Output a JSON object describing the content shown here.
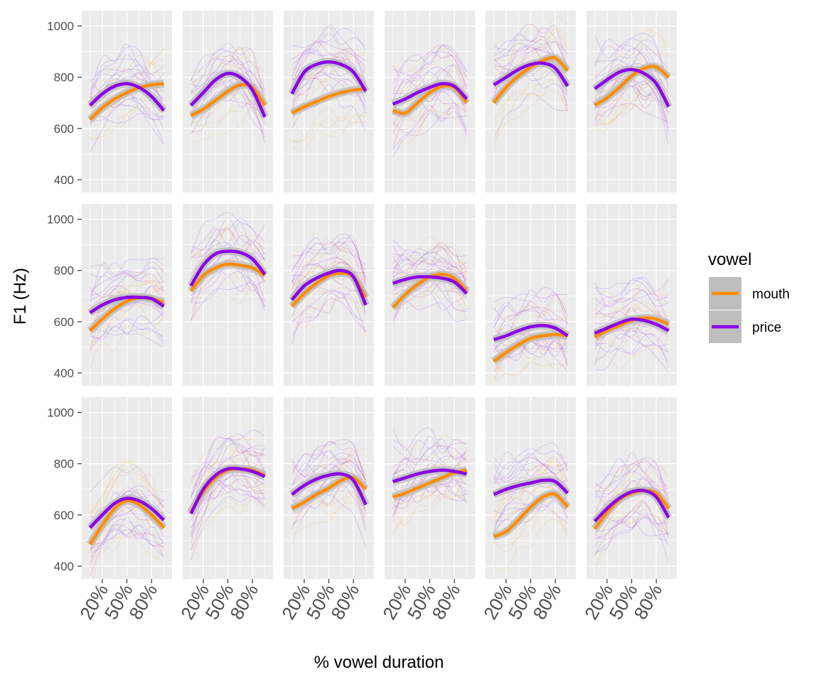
{
  "chart_data": {
    "type": "line",
    "xlabel": "% vowel duration",
    "ylabel": "F1 (Hz)",
    "x_tick_labels": [
      "20%",
      "50%",
      "80%"
    ],
    "x_ticks": [
      20,
      50,
      80
    ],
    "xlim": [
      -5,
      105
    ],
    "y_ticks": [
      400,
      600,
      800,
      1000
    ],
    "y_tick_labels": [
      "400",
      "600",
      "800",
      "1000"
    ],
    "ylim": [
      350,
      1060
    ],
    "grid": true,
    "legend": {
      "title": "vowel",
      "position": "right",
      "entries": [
        {
          "label": "mouth",
          "color": "#ff8c00"
        },
        {
          "label": "price",
          "color": "#8b00e8"
        }
      ]
    },
    "colors": {
      "mouth": "#ff8c00",
      "price": "#8b00e8",
      "panel_bg": "#ebebeb",
      "ribbon": "#bebebe"
    },
    "x": [
      5,
      20,
      35,
      50,
      65,
      80,
      95
    ],
    "facet_layout": {
      "rows": 3,
      "cols": 6
    },
    "panels": [
      {
        "mouth": [
          635,
          680,
          715,
          740,
          760,
          770,
          775
        ],
        "price": [
          690,
          735,
          765,
          775,
          760,
          725,
          670
        ]
      },
      {
        "mouth": [
          650,
          675,
          710,
          745,
          770,
          760,
          690
        ],
        "price": [
          690,
          740,
          790,
          815,
          800,
          750,
          645
        ]
      },
      {
        "mouth": [
          660,
          685,
          705,
          725,
          740,
          750,
          755
        ],
        "price": [
          735,
          820,
          850,
          860,
          850,
          820,
          745
        ]
      },
      {
        "mouth": [
          670,
          660,
          700,
          740,
          765,
          760,
          700
        ],
        "price": [
          695,
          715,
          740,
          760,
          775,
          765,
          715
        ]
      },
      {
        "mouth": [
          700,
          760,
          805,
          840,
          865,
          875,
          825
        ],
        "price": [
          770,
          800,
          830,
          850,
          855,
          835,
          765
        ]
      },
      {
        "mouth": [
          690,
          720,
          760,
          805,
          835,
          840,
          800
        ],
        "price": [
          755,
          790,
          820,
          830,
          815,
          775,
          685
        ]
      },
      {
        "mouth": [
          565,
          610,
          650,
          680,
          695,
          690,
          675
        ],
        "price": [
          635,
          665,
          685,
          695,
          695,
          690,
          660
        ]
      },
      {
        "mouth": [
          720,
          780,
          810,
          825,
          820,
          810,
          780
        ],
        "price": [
          740,
          820,
          865,
          875,
          870,
          845,
          785
        ]
      },
      {
        "mouth": [
          660,
          710,
          750,
          780,
          790,
          775,
          695
        ],
        "price": [
          685,
          740,
          770,
          790,
          800,
          775,
          665
        ]
      },
      {
        "mouth": [
          655,
          705,
          745,
          775,
          785,
          770,
          720
        ],
        "price": [
          750,
          765,
          775,
          775,
          770,
          755,
          710
        ]
      },
      {
        "mouth": [
          445,
          480,
          510,
          535,
          545,
          550,
          545
        ],
        "price": [
          530,
          545,
          565,
          580,
          585,
          575,
          545
        ]
      },
      {
        "mouth": [
          540,
          565,
          585,
          605,
          615,
          610,
          590
        ],
        "price": [
          555,
          575,
          595,
          610,
          605,
          590,
          565
        ]
      },
      {
        "mouth": [
          485,
          560,
          625,
          655,
          640,
          600,
          550
        ],
        "price": [
          550,
          600,
          645,
          665,
          655,
          625,
          580
        ]
      },
      {
        "mouth": [
          610,
          690,
          745,
          775,
          780,
          775,
          755
        ],
        "price": [
          605,
          700,
          755,
          780,
          780,
          770,
          750
        ]
      },
      {
        "mouth": [
          625,
          650,
          680,
          705,
          735,
          745,
          700
        ],
        "price": [
          680,
          715,
          740,
          755,
          760,
          735,
          640
        ]
      },
      {
        "mouth": [
          670,
          685,
          705,
          725,
          745,
          765,
          775
        ],
        "price": [
          730,
          745,
          760,
          770,
          775,
          770,
          760
        ]
      },
      {
        "mouth": [
          515,
          535,
          580,
          630,
          670,
          680,
          630
        ],
        "price": [
          680,
          700,
          715,
          725,
          735,
          730,
          685
        ]
      },
      {
        "mouth": [
          545,
          610,
          660,
          685,
          695,
          685,
          625
        ],
        "price": [
          575,
          625,
          665,
          690,
          695,
          670,
          590
        ]
      }
    ]
  }
}
